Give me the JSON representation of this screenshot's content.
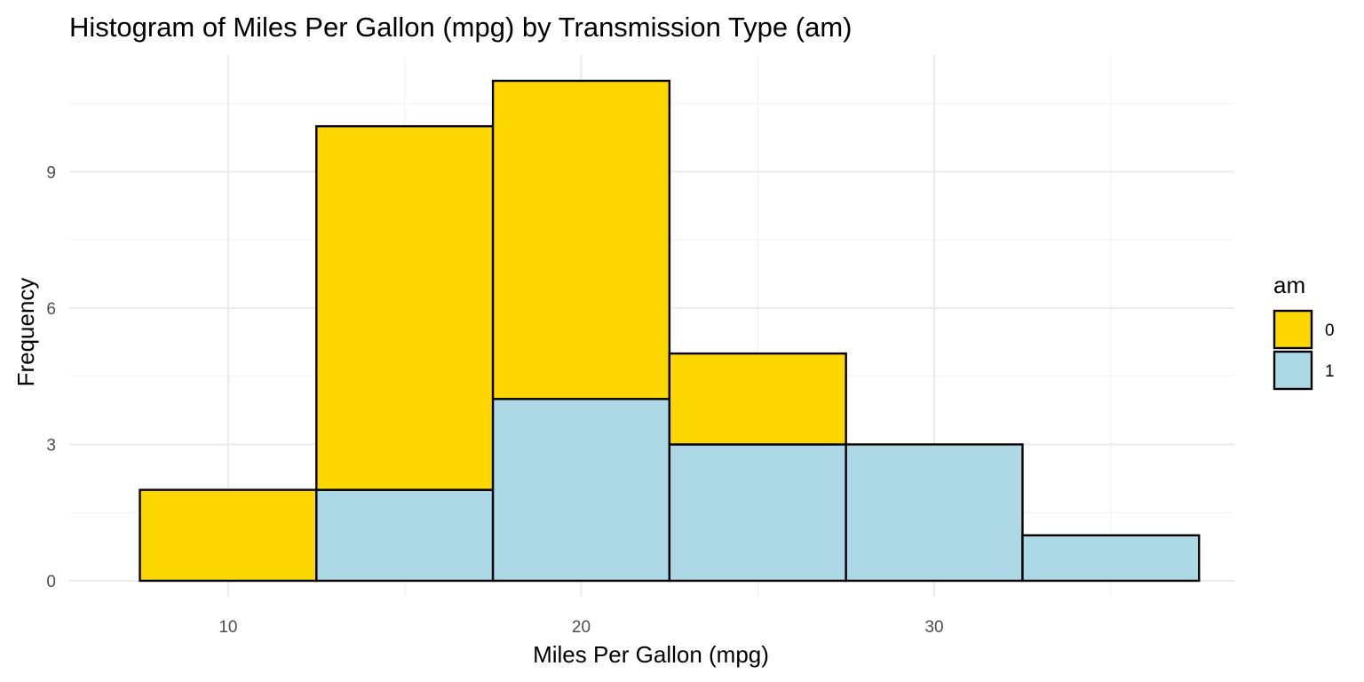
{
  "chart_data": {
    "type": "bar",
    "title": "Histogram of Miles Per Gallon (mpg) by Transmission Type (am)",
    "xlabel": "Miles Per Gallon (mpg)",
    "ylabel": "Frequency",
    "stacked": true,
    "bin_width": 5,
    "bins": [
      {
        "start": 7.5,
        "end": 12.5,
        "center": 10
      },
      {
        "start": 12.5,
        "end": 17.5,
        "center": 15
      },
      {
        "start": 17.5,
        "end": 22.5,
        "center": 20
      },
      {
        "start": 22.5,
        "end": 27.5,
        "center": 25
      },
      {
        "start": 27.5,
        "end": 32.5,
        "center": 30
      },
      {
        "start": 32.5,
        "end": 37.5,
        "center": 35
      }
    ],
    "series": [
      {
        "name": "0",
        "color": "#FFD700",
        "values": [
          2,
          8,
          7,
          2,
          0,
          0
        ]
      },
      {
        "name": "1",
        "color": "#ADD8E6",
        "values": [
          0,
          2,
          4,
          3,
          3,
          1
        ]
      }
    ],
    "xlim": [
      5.5,
      38.5
    ],
    "ylim": [
      0,
      11.55
    ],
    "x_ticks": [
      10,
      20,
      30
    ],
    "x_tick_labels": [
      "10",
      "20",
      "30"
    ],
    "x_minor_ticks": [
      15,
      25,
      35
    ],
    "y_ticks": [
      0,
      3,
      6,
      9
    ],
    "y_tick_labels": [
      "0",
      "3",
      "6",
      "9"
    ],
    "y_minor_ticks": [
      1.5,
      4.5,
      7.5,
      10.5
    ],
    "grid": true,
    "legend": {
      "title": "am",
      "position": "right",
      "entries": [
        "0",
        "1"
      ]
    }
  }
}
